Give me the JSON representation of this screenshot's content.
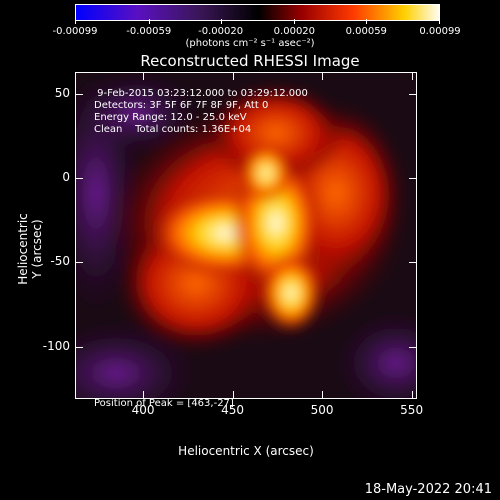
{
  "colorbar": {
    "tick_labels": [
      "-0.00099",
      "-0.00059",
      "-0.00020",
      "0.00020",
      "0.00059",
      "0.00099"
    ],
    "tick_values": [
      -0.00099,
      -0.00059,
      -0.0002,
      0.0002,
      0.00059,
      0.00099
    ],
    "range": [
      -0.00099,
      0.00099
    ],
    "units": "(photons cm⁻² s⁻¹ asec⁻²)",
    "colormap": [
      "#0000ff",
      "#7a0aa0",
      "#2a0f3a",
      "#000000",
      "#8a0000",
      "#ff3b00",
      "#ffb000",
      "#ffffff"
    ]
  },
  "chart_data": {
    "type": "heatmap",
    "title": "Reconstructed RHESSI Image",
    "xlabel": "Heliocentric X (arcsec)",
    "ylabel": "Heliocentric Y (arcsec)",
    "xlim": [
      362,
      553
    ],
    "ylim": [
      -131,
      63
    ],
    "xticks": [
      400,
      450,
      500,
      550
    ],
    "yticks": [
      50,
      0,
      -50,
      -100
    ],
    "xtick_labels": [
      "400",
      "450",
      "500",
      "550"
    ],
    "ytick_labels": [
      "50",
      "0",
      "-50",
      "-100"
    ],
    "peak_position": [
      463,
      -27
    ],
    "annotations": [
      " 9-Feb-2015 03:23:12.000 to 03:29:12.000",
      "Detectors: 3F 5F 6F 7F 8F 9F, Att 0",
      "Energy Range: 12.0 - 25.0 keV",
      "Clean    Total counts: 1.36E+04"
    ],
    "peak_label": "Position of Peak = [463,-27]"
  },
  "footer": {
    "timestamp": "18-May-2022 20:41"
  }
}
